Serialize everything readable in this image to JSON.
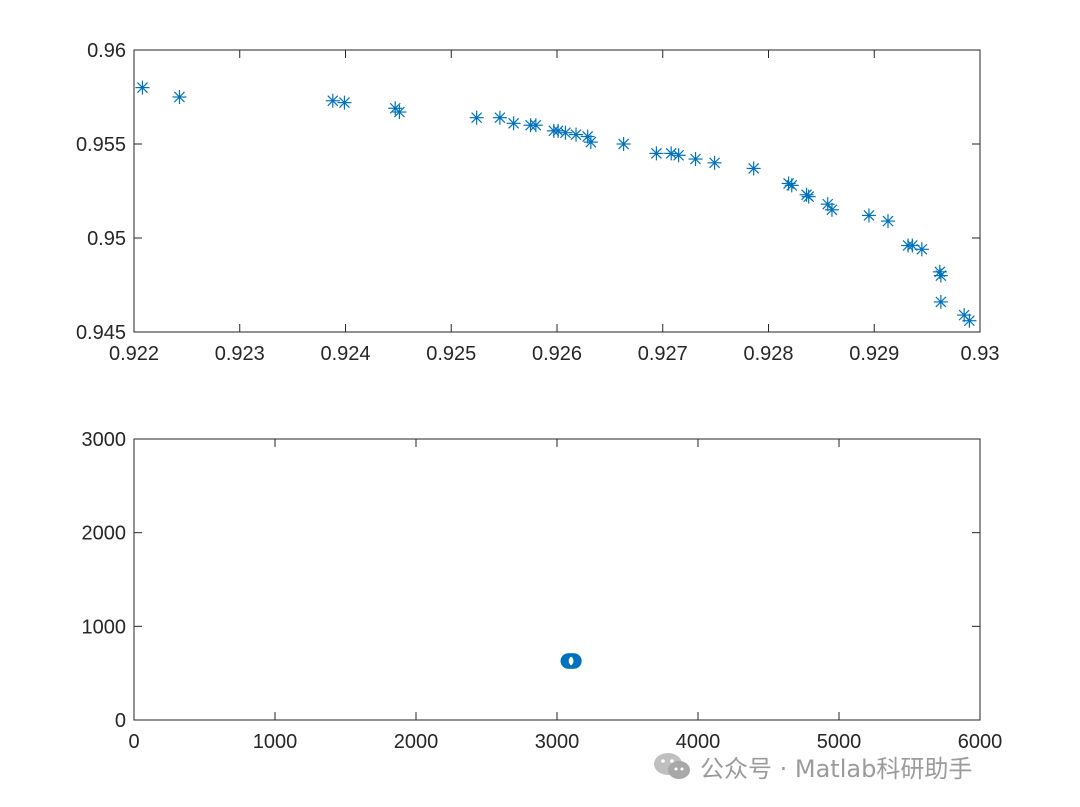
{
  "chart_data": [
    {
      "type": "scatter",
      "marker": "asterisk",
      "color": "#0072BD",
      "xlim": [
        0.922,
        0.93
      ],
      "ylim": [
        0.945,
        0.96
      ],
      "xticks": [
        "0.922",
        "0.923",
        "0.924",
        "0.925",
        "0.926",
        "0.927",
        "0.928",
        "0.929",
        "0.93"
      ],
      "yticks": [
        "0.945",
        "0.95",
        "0.955",
        "0.96"
      ],
      "grid": false,
      "points": [
        [
          0.92208,
          0.958
        ],
        [
          0.92243,
          0.9575
        ],
        [
          0.92388,
          0.9573
        ],
        [
          0.92399,
          0.9572
        ],
        [
          0.92447,
          0.9569
        ],
        [
          0.92451,
          0.9567
        ],
        [
          0.92524,
          0.9564
        ],
        [
          0.92546,
          0.9564
        ],
        [
          0.92559,
          0.9561
        ],
        [
          0.92575,
          0.956
        ],
        [
          0.9258,
          0.956
        ],
        [
          0.92597,
          0.9557
        ],
        [
          0.92601,
          0.9557
        ],
        [
          0.92608,
          0.9556
        ],
        [
          0.92618,
          0.9555
        ],
        [
          0.92629,
          0.9554
        ],
        [
          0.92632,
          0.9551
        ],
        [
          0.92663,
          0.955
        ],
        [
          0.92694,
          0.9545
        ],
        [
          0.92708,
          0.9545
        ],
        [
          0.92715,
          0.9544
        ],
        [
          0.92731,
          0.9542
        ],
        [
          0.92749,
          0.954
        ],
        [
          0.92786,
          0.9537
        ],
        [
          0.92819,
          0.9529
        ],
        [
          0.92822,
          0.9528
        ],
        [
          0.92836,
          0.9523
        ],
        [
          0.92838,
          0.9522
        ],
        [
          0.92856,
          0.9518
        ],
        [
          0.9286,
          0.9515
        ],
        [
          0.92895,
          0.9512
        ],
        [
          0.92913,
          0.9509
        ],
        [
          0.92932,
          0.9496
        ],
        [
          0.92936,
          0.9496
        ],
        [
          0.92945,
          0.9494
        ],
        [
          0.92962,
          0.9482
        ],
        [
          0.92963,
          0.948
        ],
        [
          0.92963,
          0.9466
        ],
        [
          0.92985,
          0.9459
        ],
        [
          0.9299,
          0.9456
        ]
      ]
    },
    {
      "type": "scatter",
      "marker": "circle",
      "color": "#0072BD",
      "xlim": [
        0,
        6000
      ],
      "ylim": [
        0,
        3000
      ],
      "xticks": [
        "0",
        "1000",
        "2000",
        "3000",
        "4000",
        "5000",
        "6000"
      ],
      "yticks": [
        "0",
        "1000",
        "2000",
        "3000"
      ],
      "grid": false,
      "points": [
        [
          3080,
          630
        ],
        [
          3090,
          630
        ],
        [
          3100,
          630
        ],
        [
          3110,
          630
        ],
        [
          3120,
          630
        ]
      ]
    }
  ],
  "watermark": {
    "text": "公众号 · Matlab科研助手",
    "icon": "wechat-icon"
  }
}
